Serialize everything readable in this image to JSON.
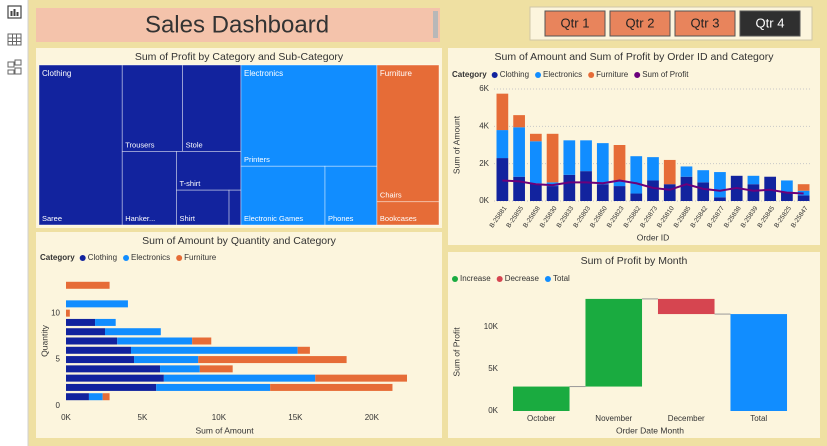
{
  "header": {
    "title": "Sales Dashboard"
  },
  "slicer": {
    "buttons": [
      "Qtr 1",
      "Qtr 2",
      "Qtr 3",
      "Qtr 4"
    ],
    "selected": "Qtr 4"
  },
  "chart_data": [
    {
      "type": "treemap",
      "title": "Sum of Profit by Category and Sub-Category",
      "series": [
        {
          "name": "Clothing",
          "color": "#12239e",
          "categories": [
            "Saree",
            "Trousers",
            "Stole",
            "Hanker...",
            "T-shirt",
            "Shirt",
            null
          ],
          "values": [
            2400,
            940,
            910,
            720,
            450,
            330,
            75
          ]
        },
        {
          "name": "Electronics",
          "color": "#118dff",
          "categories": [
            "Printers",
            "Electronic Games",
            "Phones"
          ],
          "values": [
            2480,
            890,
            550
          ]
        },
        {
          "name": "Furniture",
          "color": "#e66c37",
          "categories": [
            "Chairs",
            "Bookcases"
          ],
          "values": [
            1530,
            260
          ]
        }
      ]
    },
    {
      "type": "combo",
      "title": "Sum of Amount and Sum of Profit by Order ID and Category",
      "legend_title": "Category",
      "xlabel": "Order ID",
      "ylabel": "Sum of Amount",
      "categories": [
        "B-25881",
        "B-25855",
        "B-25858",
        "B-25830",
        "B-25833",
        "B-25803",
        "B-25850",
        "B-25823",
        "B-25862",
        "B-25873",
        "B-25810",
        "B-25885",
        "B-25842",
        "B-25877",
        "B-25838",
        "B-25839",
        "B-25845",
        "B-25825",
        "B-25847"
      ],
      "series": [
        {
          "name": "Clothing",
          "color": "#12239e",
          "mark": "bar",
          "values": [
            2300,
            1300,
            950,
            800,
            1400,
            1600,
            900,
            800,
            400,
            1100,
            900,
            1300,
            1000,
            200,
            1350,
            900,
            1300,
            500,
            300
          ]
        },
        {
          "name": "Electronics",
          "color": "#118dff",
          "mark": "bar",
          "values": [
            1500,
            2650,
            2250,
            200,
            1850,
            1650,
            2200,
            300,
            2000,
            1250,
            null,
            550,
            650,
            1350,
            null,
            450,
            null,
            600,
            250
          ]
        },
        {
          "name": "Furniture",
          "color": "#e66c37",
          "mark": "bar",
          "values": [
            1950,
            650,
            400,
            2600,
            null,
            null,
            null,
            1900,
            null,
            null,
            1300,
            null,
            null,
            null,
            null,
            null,
            null,
            null,
            350
          ]
        },
        {
          "name": "Sum of Profit",
          "color": "#6b007b",
          "mark": "line",
          "values": [
            1100,
            1050,
            900,
            850,
            1000,
            1000,
            950,
            1100,
            950,
            700,
            600,
            900,
            650,
            550,
            700,
            550,
            600,
            450,
            400
          ]
        }
      ],
      "ylim": [
        0,
        6000
      ],
      "yticks": [
        {
          "value": 0,
          "label": "0K"
        },
        {
          "value": 2000,
          "label": "2K"
        },
        {
          "value": 4000,
          "label": "4K"
        },
        {
          "value": 6000,
          "label": "6K"
        }
      ],
      "grid": true
    },
    {
      "type": "hbar",
      "title": "Sum of Amount by Quantity and Category",
      "legend_title": "Category",
      "xlabel": "Sum of Amount",
      "ylabel": "Quantity",
      "y": [
        1,
        2,
        3,
        4,
        5,
        6,
        7,
        8,
        9,
        10,
        11,
        13
      ],
      "series": [
        {
          "name": "Clothing",
          "color": "#12239e",
          "values": [
            1500,
            5900,
            6400,
            6150,
            4450,
            4250,
            3350,
            2550,
            1900,
            null,
            null,
            null
          ]
        },
        {
          "name": "Electronics",
          "color": "#118dff",
          "values": [
            900,
            7450,
            9900,
            2600,
            4200,
            10900,
            4900,
            3650,
            1350,
            null,
            4050,
            null
          ]
        },
        {
          "name": "Furniture",
          "color": "#e66c37",
          "values": [
            450,
            8000,
            6000,
            2150,
            9700,
            800,
            1250,
            null,
            null,
            250,
            null,
            2850
          ]
        }
      ],
      "xlim": [
        0,
        24000
      ],
      "xticks": [
        {
          "value": 0,
          "label": "0K"
        },
        {
          "value": 5000,
          "label": "5K"
        },
        {
          "value": 10000,
          "label": "10K"
        },
        {
          "value": 15000,
          "label": "15K"
        },
        {
          "value": 20000,
          "label": "20K"
        }
      ],
      "ylim": [
        0,
        14
      ],
      "yticks": [
        0,
        5,
        10
      ],
      "grid": false
    },
    {
      "type": "waterfall",
      "title": "Sum of Profit by Month",
      "xlabel": "Order Date Month",
      "ylabel": "Sum of Profit",
      "legend": [
        {
          "name": "Increase",
          "color": "#1aab40"
        },
        {
          "name": "Decrease",
          "color": "#d64550"
        },
        {
          "name": "Total",
          "color": "#118dff"
        }
      ],
      "categories": [
        "October",
        "November",
        "December",
        "Total"
      ],
      "values": [
        2900,
        10400,
        -1800,
        11500
      ],
      "ylim": [
        0,
        14000
      ],
      "yticks": [
        {
          "value": 0,
          "label": "0K"
        },
        {
          "value": 5000,
          "label": "5K"
        },
        {
          "value": 10000,
          "label": "10K"
        }
      ],
      "grid": false
    }
  ]
}
